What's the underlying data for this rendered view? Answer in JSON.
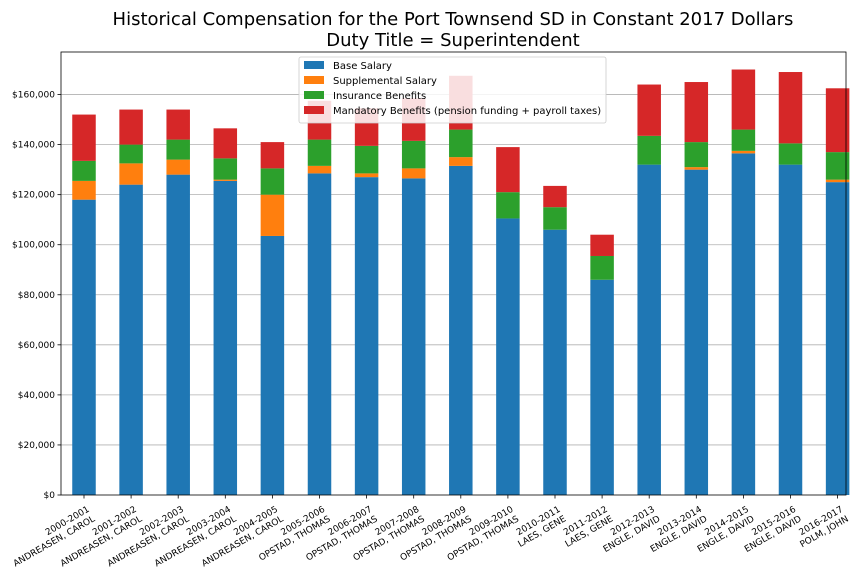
{
  "chart_data": {
    "type": "bar",
    "stacked": true,
    "title": "Historical Compensation for the Port Townsend SD in Constant 2017 Dollars",
    "subtitle": "Duty Title = Superintendent",
    "xlabel": "",
    "ylabel": "",
    "ylim": [
      0,
      177000
    ],
    "yticks": [
      0,
      20000,
      40000,
      60000,
      80000,
      100000,
      120000,
      140000,
      160000
    ],
    "ytick_labels": [
      "$0",
      "$20,000",
      "$40,000",
      "$60,000",
      "$80,000",
      "$100,000",
      "$120,000",
      "$140,000",
      "$160,000"
    ],
    "grid": "horizontal",
    "legend_position": "top-center",
    "categories": [
      [
        "2000-2001",
        "ANDREASEN, CAROL"
      ],
      [
        "2001-2002",
        "ANDREASEN, CAROL"
      ],
      [
        "2002-2003",
        "ANDREASEN, CAROL"
      ],
      [
        "2003-2004",
        "ANDREASEN, CAROL"
      ],
      [
        "2004-2005",
        "ANDREASEN, CAROL"
      ],
      [
        "2005-2006",
        "OPSTAD, THOMAS"
      ],
      [
        "2006-2007",
        "OPSTAD, THOMAS"
      ],
      [
        "2007-2008",
        "OPSTAD, THOMAS"
      ],
      [
        "2008-2009",
        "OPSTAD, THOMAS"
      ],
      [
        "2009-2010",
        "OPSTAD, THOMAS"
      ],
      [
        "2010-2011",
        "LAES, GENE"
      ],
      [
        "2011-2012",
        "LAES, GENE"
      ],
      [
        "2012-2013",
        "ENGLE, DAVID"
      ],
      [
        "2013-2014",
        "ENGLE, DAVID"
      ],
      [
        "2014-2015",
        "ENGLE, DAVID"
      ],
      [
        "2015-2016",
        "ENGLE, DAVID"
      ],
      [
        "2016-2017",
        "POLM, JOHN"
      ]
    ],
    "series": [
      {
        "name": "Base Salary",
        "color": "#1f77b4",
        "values": [
          118000,
          124000,
          128000,
          125500,
          103500,
          128500,
          127000,
          126500,
          131500,
          110500,
          106000,
          86000,
          132000,
          130000,
          136500,
          132000,
          125000
        ]
      },
      {
        "name": "Supplemental Salary",
        "color": "#ff7f0e",
        "values": [
          7500,
          8500,
          6000,
          500,
          16500,
          3000,
          1500,
          4000,
          3500,
          0,
          0,
          0,
          0,
          1000,
          1000,
          0,
          1000
        ]
      },
      {
        "name": "Insurance Benefits",
        "color": "#2ca02c",
        "values": [
          8000,
          7500,
          8000,
          8500,
          10500,
          10500,
          11000,
          11000,
          11000,
          10500,
          9000,
          9500,
          11500,
          10000,
          8500,
          8500,
          11000
        ]
      },
      {
        "name": "Mandatory Benefits (pension funding + payroll taxes)",
        "color": "#d62728",
        "values": [
          18500,
          14000,
          12000,
          12000,
          10500,
          15500,
          15000,
          17000,
          21500,
          18000,
          8500,
          8500,
          20500,
          24000,
          24000,
          28500,
          25500
        ]
      }
    ]
  }
}
